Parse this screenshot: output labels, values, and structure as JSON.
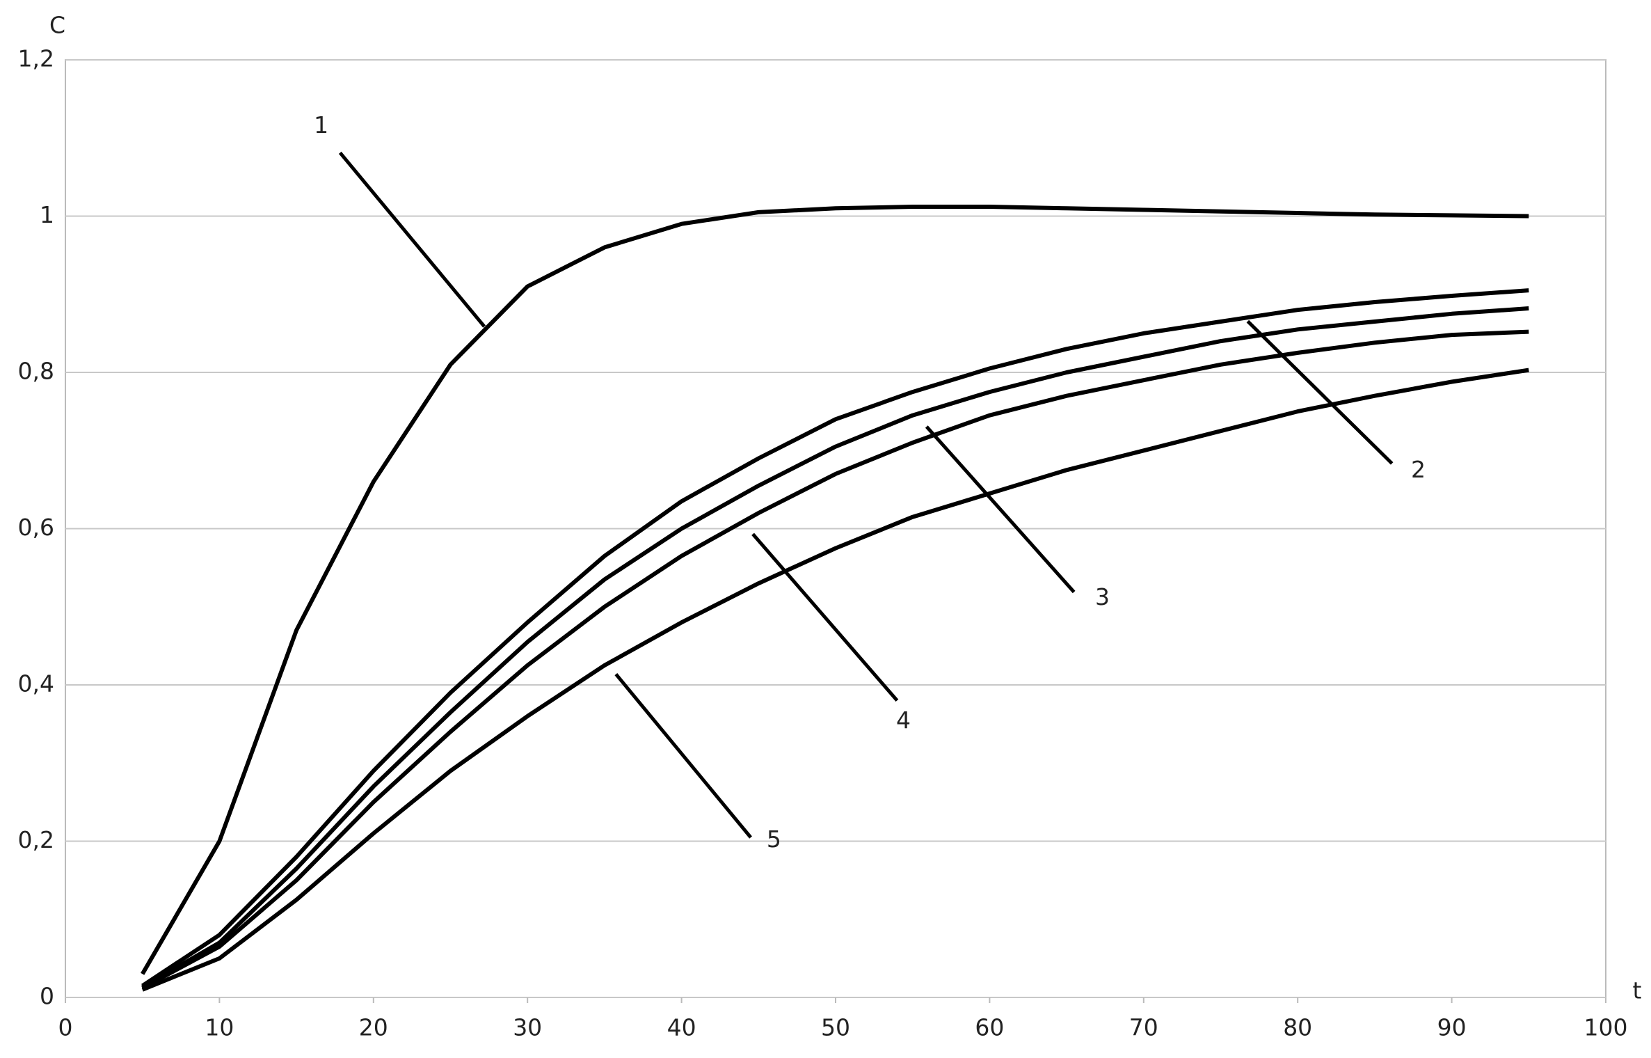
{
  "chart_data": {
    "type": "line",
    "xlabel": "t",
    "ylabel": "C",
    "xlim": [
      0,
      100
    ],
    "xticks": [
      0,
      10,
      20,
      30,
      40,
      50,
      60,
      70,
      80,
      90,
      100
    ],
    "ylim": [
      0,
      1.2
    ],
    "yticks": [
      0,
      {
        "value": 0.2,
        "label": "0,2"
      },
      {
        "value": 0.4,
        "label": "0,4"
      },
      {
        "value": 0.6,
        "label": "0,6"
      },
      {
        "value": 0.8,
        "label": "0,8"
      },
      1,
      {
        "value": 1.2,
        "label": "1,2"
      }
    ],
    "grid": true,
    "x": [
      5,
      10,
      15,
      20,
      25,
      30,
      35,
      40,
      45,
      50,
      55,
      60,
      65,
      70,
      75,
      80,
      85,
      90,
      95
    ],
    "series": [
      {
        "name": "1",
        "color": "#000000",
        "values": [
          0.03,
          0.2,
          0.47,
          0.66,
          0.81,
          0.91,
          0.96,
          0.99,
          1.005,
          1.01,
          1.012,
          1.012,
          1.01,
          1.008,
          1.006,
          1.004,
          1.002,
          1.001,
          1.0
        ]
      },
      {
        "name": "2",
        "color": "#000000",
        "values": [
          0.015,
          0.08,
          0.18,
          0.29,
          0.39,
          0.48,
          0.565,
          0.635,
          0.69,
          0.74,
          0.775,
          0.805,
          0.83,
          0.85,
          0.865,
          0.88,
          0.89,
          0.898,
          0.905
        ]
      },
      {
        "name": "3",
        "color": "#000000",
        "values": [
          0.013,
          0.07,
          0.165,
          0.27,
          0.365,
          0.455,
          0.535,
          0.6,
          0.655,
          0.705,
          0.745,
          0.775,
          0.8,
          0.82,
          0.84,
          0.855,
          0.865,
          0.875,
          0.882
        ]
      },
      {
        "name": "4",
        "color": "#000000",
        "values": [
          0.012,
          0.065,
          0.15,
          0.25,
          0.34,
          0.425,
          0.5,
          0.565,
          0.62,
          0.67,
          0.71,
          0.745,
          0.77,
          0.79,
          0.81,
          0.825,
          0.838,
          0.848,
          0.852
        ]
      },
      {
        "name": "5",
        "color": "#000000",
        "values": [
          0.01,
          0.05,
          0.125,
          0.21,
          0.29,
          0.36,
          0.425,
          0.48,
          0.53,
          0.575,
          0.615,
          0.645,
          0.675,
          0.7,
          0.725,
          0.75,
          0.77,
          0.788,
          0.803
        ]
      }
    ]
  }
}
